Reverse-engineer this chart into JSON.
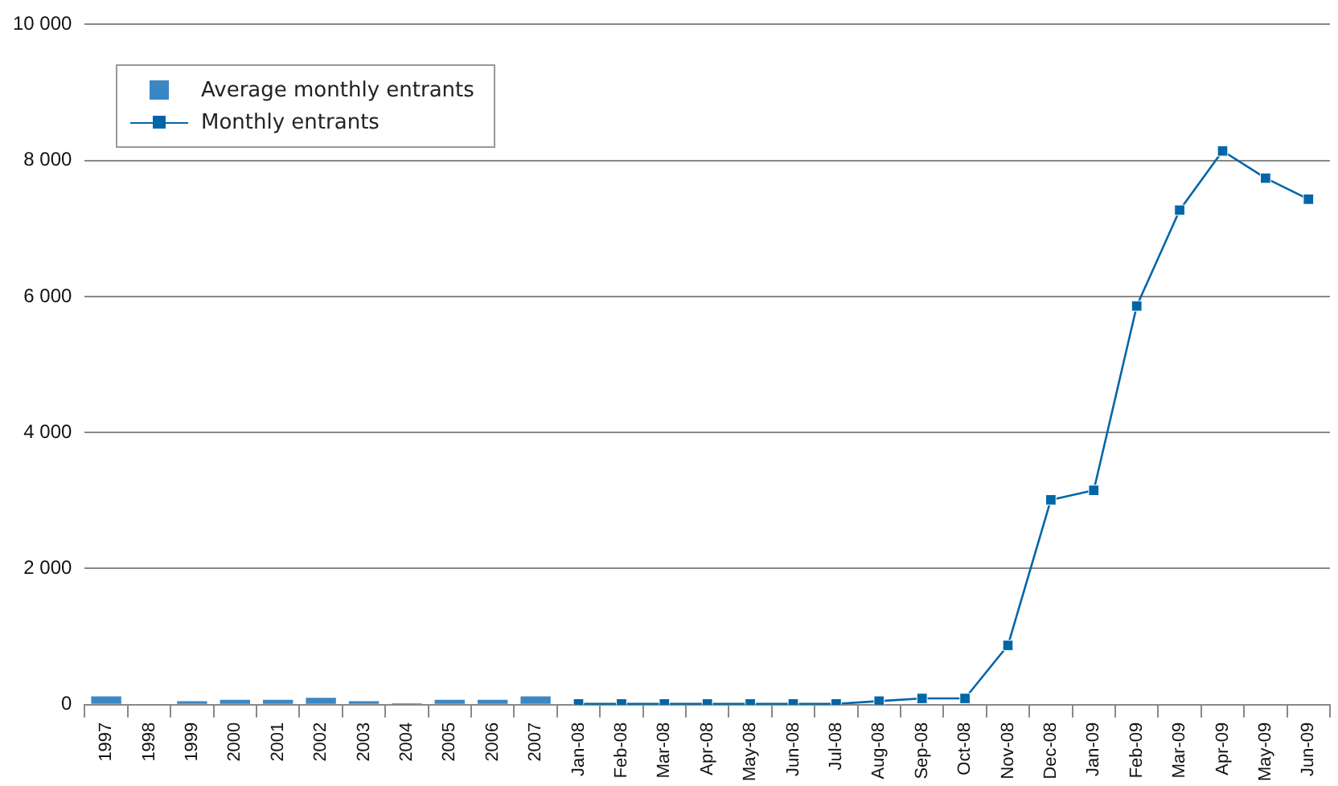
{
  "chart_data": {
    "type": "bar",
    "categories": [
      "1997",
      "1998",
      "1999",
      "2000",
      "2001",
      "2002",
      "2003",
      "2004",
      "2005",
      "2006",
      "2007",
      "Jan-08",
      "Feb-08",
      "Mar-08",
      "Apr-08",
      "May-08",
      "Jun-08",
      "Jul-08",
      "Aug-08",
      "Sep-08",
      "Oct-08",
      "Nov-08",
      "Dec-08",
      "Jan-09",
      "Feb-09",
      "Mar-09",
      "Apr-09",
      "May-09",
      "Jun-09"
    ],
    "series": [
      {
        "name": "Average monthly entrants",
        "color": "#3b87c4",
        "values": [
          120,
          10,
          50,
          70,
          70,
          100,
          50,
          20,
          70,
          70,
          120,
          null,
          null,
          null,
          null,
          null,
          null,
          null,
          null,
          null,
          null,
          null,
          null,
          null,
          null,
          null,
          null,
          null,
          null
        ]
      },
      {
        "name": "Monthly entrants",
        "type": "line",
        "color": "#0066a8",
        "values": [
          null,
          null,
          null,
          null,
          null,
          null,
          null,
          null,
          null,
          null,
          null,
          10,
          10,
          10,
          10,
          10,
          10,
          10,
          50,
          90,
          90,
          870,
          3010,
          3150,
          5860,
          7270,
          8140,
          7740,
          7430
        ]
      }
    ],
    "ylim": [
      0,
      10000
    ],
    "yticks": [
      {
        "value": 0,
        "label": "0"
      },
      {
        "value": 2000,
        "label": "2 000"
      },
      {
        "value": 4000,
        "label": "4 000"
      },
      {
        "value": 6000,
        "label": "6 000"
      },
      {
        "value": 8000,
        "label": "8 000"
      },
      {
        "value": 10000,
        "label": "10 000"
      }
    ],
    "grid": "y",
    "legend": "top left",
    "marker": "square",
    "line_style": "solid"
  }
}
